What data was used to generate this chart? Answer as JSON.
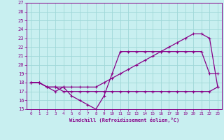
{
  "xlabel": "Windchill (Refroidissement éolien,°C)",
  "background_color": "#c8eff0",
  "grid_color": "#a0d8d8",
  "line_color": "#880088",
  "xlim": [
    -0.5,
    23.5
  ],
  "ylim": [
    15,
    27
  ],
  "xticks": [
    0,
    1,
    2,
    3,
    4,
    5,
    6,
    7,
    8,
    9,
    10,
    11,
    12,
    13,
    14,
    15,
    16,
    17,
    18,
    19,
    20,
    21,
    22,
    23
  ],
  "yticks": [
    15,
    16,
    17,
    18,
    19,
    20,
    21,
    22,
    23,
    24,
    25,
    26,
    27
  ],
  "line_straight_x": [
    0,
    1,
    2,
    3,
    4,
    5,
    6,
    7,
    8,
    9,
    10,
    11,
    12,
    13,
    14,
    15,
    16,
    17,
    18,
    19,
    20,
    21,
    22,
    23
  ],
  "line_straight_y": [
    18,
    18,
    17.5,
    17.5,
    17.5,
    17.5,
    17.5,
    17.5,
    17.5,
    18,
    18.5,
    19,
    19.5,
    20,
    20.5,
    21,
    21.5,
    22,
    22.5,
    23,
    23.5,
    23.5,
    23,
    17.5
  ],
  "line_low_x": [
    0,
    1,
    2,
    3,
    4,
    5,
    6,
    7,
    8,
    9,
    10,
    11,
    12,
    13,
    14,
    15,
    16,
    17,
    18,
    19,
    20,
    21,
    22,
    23
  ],
  "line_low_y": [
    18,
    18,
    17.5,
    17,
    17.5,
    16.5,
    16,
    15.5,
    15,
    16.5,
    19,
    21.5,
    21.5,
    21.5,
    21.5,
    21.5,
    21.5,
    21.5,
    21.5,
    21.5,
    21.5,
    21.5,
    19,
    19
  ],
  "line_high_x": [
    0,
    1,
    2,
    3,
    4,
    5,
    6,
    7,
    8,
    9,
    10,
    11,
    12,
    13,
    14,
    15,
    16,
    17,
    18,
    19,
    20,
    21,
    22,
    23
  ],
  "line_high_y": [
    18,
    18,
    17.5,
    17.5,
    17,
    17,
    17,
    17,
    17,
    17,
    17,
    17,
    17,
    17,
    17,
    17,
    17,
    17,
    17,
    17,
    17,
    17,
    17,
    17.5
  ]
}
